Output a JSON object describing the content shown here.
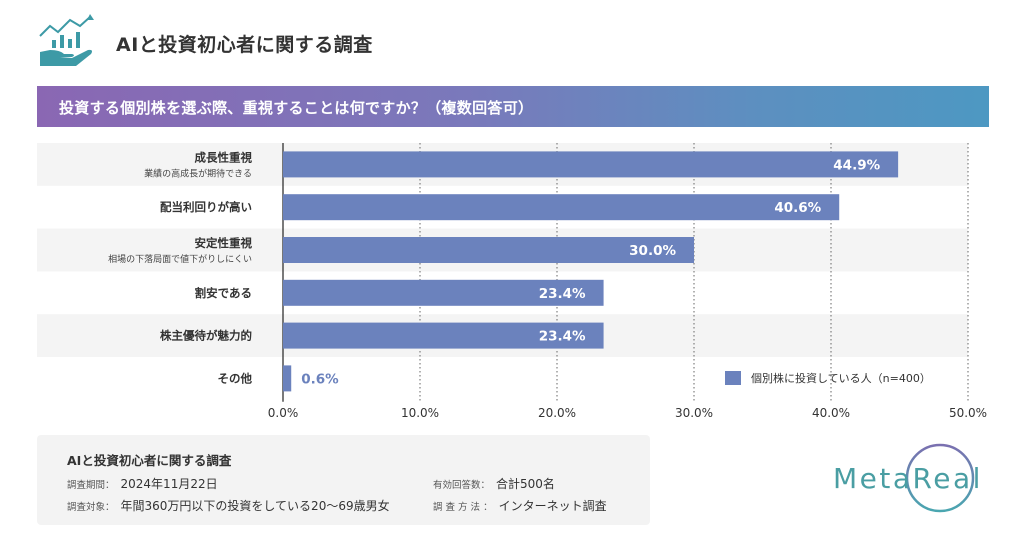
{
  "header": {
    "title": "AIと投資初心者に関する調査",
    "icon": "hand-chart-growth-icon"
  },
  "question": "投資する個別株を選ぶ際、重視することは何ですか？（複数回答可）",
  "colors": {
    "bar": "#6b82bd",
    "row_band": "#f4f4f4",
    "banner_start": "#8a67b3",
    "banner_end": "#4d98c2",
    "logo_teal": "#4a9ea3",
    "logo_purple": "#7a70b0"
  },
  "chart_data": {
    "type": "bar",
    "orientation": "horizontal",
    "title": "投資する個別株を選ぶ際、重視することは何ですか？（複数回答可）",
    "categories": [
      {
        "label": "成長性重視",
        "sub": "業績の高成長が期待できる"
      },
      {
        "label": "配当利回りが高い",
        "sub": ""
      },
      {
        "label": "安定性重視",
        "sub": "相場の下落局面で値下がりしにくい"
      },
      {
        "label": "割安である",
        "sub": ""
      },
      {
        "label": "株主優待が魅力的",
        "sub": ""
      },
      {
        "label": "その他",
        "sub": ""
      }
    ],
    "series": [
      {
        "name": "個別株に投資している人（n=400）",
        "values": [
          44.9,
          40.6,
          30.0,
          23.4,
          23.4,
          0.6
        ],
        "value_labels": [
          "44.9%",
          "40.6%",
          "30.0%",
          "23.4%",
          "23.4%",
          "0.6%"
        ]
      }
    ],
    "xlim": [
      0,
      50
    ],
    "xticks": [
      0,
      10,
      20,
      30,
      40,
      50
    ],
    "xtick_labels": [
      "0.0%",
      "10.0%",
      "20.0%",
      "30.0%",
      "40.0%",
      "50.0%"
    ],
    "xlabel": "",
    "ylabel": "",
    "grid": "vertical dotted",
    "legend_position": "bottom-right"
  },
  "info": {
    "title": "AIと投資初心者に関する調査",
    "period_key": "調査期間：",
    "period_value": "2024年11月22日",
    "target_key": "調査対象：",
    "target_value": "年間360万円以下の投資をしている20〜69歳男女",
    "responses_key": "有効回答数：",
    "responses_value": "合計500名",
    "method_key": "調 査 方 法 ：",
    "method_value": "インターネット調査"
  },
  "logo": {
    "text": "MetaReal"
  }
}
